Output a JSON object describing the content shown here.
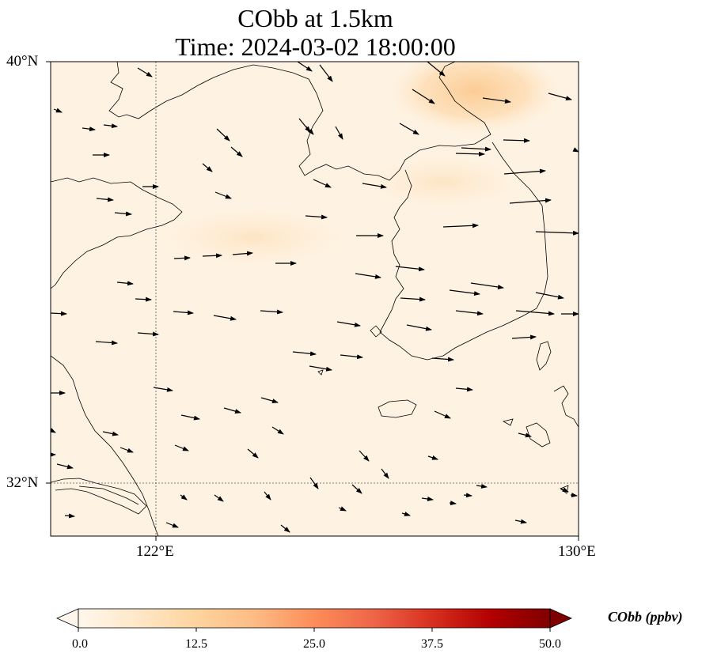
{
  "title": {
    "line1": "CObb at 1.5km",
    "line2": "Time: 2024-03-02 18:00:00"
  },
  "axes": {
    "lat_labels": [
      "40°N",
      "32°N"
    ],
    "lon_labels": [
      "122°E",
      "130°E"
    ]
  },
  "colorbar": {
    "label": "CObb (ppbv)",
    "min": 0.0,
    "max": 50.0,
    "ticks": [
      "0.0",
      "12.5",
      "25.0",
      "37.5",
      "50.0"
    ],
    "colormap": "OrRd",
    "colors": [
      "#fff7ec",
      "#fee8c8",
      "#fdd49e",
      "#fdbb84",
      "#fc8d59",
      "#ef6548",
      "#d7301f",
      "#b30000",
      "#7f0000"
    ],
    "extend": "both"
  },
  "map": {
    "extent_lon": [
      120,
      130
    ],
    "extent_lat": [
      31,
      40
    ],
    "gridlines_lon": [
      122
    ],
    "gridlines_lat": [
      32
    ],
    "background_color": "#fef3e3",
    "plume_color": "#fcc98f",
    "arrow_color": "#000000",
    "coastline_color": "#000000"
  }
}
